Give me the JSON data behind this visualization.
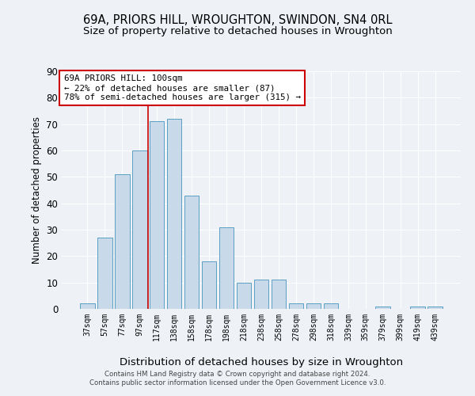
{
  "title": "69A, PRIORS HILL, WROUGHTON, SWINDON, SN4 0RL",
  "subtitle": "Size of property relative to detached houses in Wroughton",
  "xlabel": "Distribution of detached houses by size in Wroughton",
  "ylabel": "Number of detached properties",
  "categories": [
    "37sqm",
    "57sqm",
    "77sqm",
    "97sqm",
    "117sqm",
    "138sqm",
    "158sqm",
    "178sqm",
    "198sqm",
    "218sqm",
    "238sqm",
    "258sqm",
    "278sqm",
    "298sqm",
    "318sqm",
    "339sqm",
    "359sqm",
    "379sqm",
    "399sqm",
    "419sqm",
    "439sqm"
  ],
  "values": [
    2,
    27,
    51,
    60,
    71,
    72,
    43,
    18,
    31,
    10,
    11,
    11,
    2,
    2,
    2,
    0,
    0,
    1,
    0,
    1,
    1
  ],
  "bar_color": "#c8d9ea",
  "bar_edge_color": "#5a9fc4",
  "reference_line_x": 3.5,
  "reference_line_label": "69A PRIORS HILL: 100sqm",
  "annotation_line1": "← 22% of detached houses are smaller (87)",
  "annotation_line2": "78% of semi-detached houses are larger (315) →",
  "annotation_box_color": "#ffffff",
  "annotation_box_edge_color": "#cc0000",
  "ref_line_color": "#cc0000",
  "background_color": "#eef2f7",
  "grid_color": "#ffffff",
  "footer1": "Contains HM Land Registry data © Crown copyright and database right 2024.",
  "footer2": "Contains public sector information licensed under the Open Government Licence v3.0.",
  "ylim": [
    0,
    90
  ],
  "yticks": [
    0,
    10,
    20,
    30,
    40,
    50,
    60,
    70,
    80,
    90
  ]
}
